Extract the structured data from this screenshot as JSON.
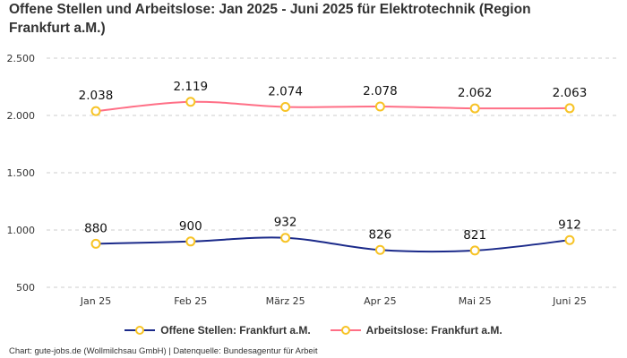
{
  "chart_data": {
    "type": "line",
    "title": "Offene Stellen und Arbeitslose: Jan 2025 - Juni 2025 für Elektrotechnik (Region Frankfurt a.M.)",
    "categories": [
      "Jan 25",
      "Feb 25",
      "März 25",
      "Apr 25",
      "Mai 25",
      "Juni 25"
    ],
    "series": [
      {
        "name": "Offene Stellen: Frankfurt a.M.",
        "values": [
          880,
          900,
          932,
          826,
          821,
          912
        ],
        "labels": [
          "880",
          "900",
          "932",
          "826",
          "821",
          "912"
        ],
        "color": "#1b2a8a"
      },
      {
        "name": "Arbeitslose: Frankfurt a.M.",
        "values": [
          2038,
          2119,
          2074,
          2078,
          2062,
          2063
        ],
        "labels": [
          "2.038",
          "2.119",
          "2.074",
          "2.078",
          "2.062",
          "2.063"
        ],
        "color": "#ff6f86"
      }
    ],
    "yticks": [
      500,
      1000,
      1500,
      2000,
      2500
    ],
    "ytick_labels": [
      "500",
      "1.000",
      "1.500",
      "2.000",
      "2.500"
    ],
    "ylim": [
      500,
      2500
    ],
    "grid": true,
    "legend": "bottom",
    "marker_color": "#f7c325"
  },
  "footer": "Chart: gute-jobs.de (Wollmilchsau GmbH) | Datenquelle: Bundesagentur für Arbeit"
}
